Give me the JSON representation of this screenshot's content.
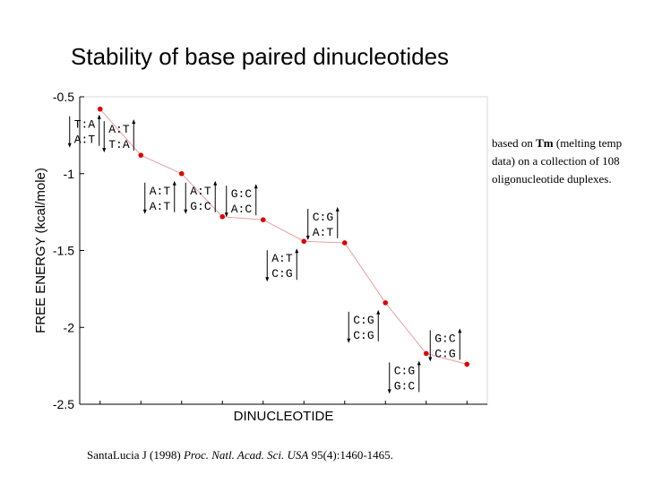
{
  "slide": {
    "title": "Stability of base paired dinucleotides",
    "note_part1": "based on ",
    "note_bold": "Tm",
    "note_part2": " (melting temp data) on a collection of 108 oligonucleotide duplexes.",
    "citation_plain1": "SantaLucia J (1998) ",
    "citation_italic": "Proc. Natl. Acad. Sci. USA",
    "citation_plain2": " 95(4):1460-1465."
  },
  "colors": {
    "line": "#e8a0a0",
    "marker": "#e00000",
    "axis": "#000000",
    "arrow": "#000000"
  },
  "chart_data": {
    "type": "line",
    "xlabel": "DINUCLEOTIDE",
    "ylabel": "FREE ENERGY (kcal/mole)",
    "ylim": [
      -2.5,
      -0.5
    ],
    "yticks": [
      -2.5,
      -2,
      -1.5,
      -1,
      -0.5
    ],
    "ytick_labels": [
      "-2.5",
      "-2",
      "-1.5",
      "-1",
      "-0.5"
    ],
    "grid": false,
    "x": [
      1,
      2,
      3,
      4,
      5,
      6,
      7,
      8,
      9,
      10
    ],
    "values": [
      -0.58,
      -0.88,
      -1.0,
      -1.28,
      -1.3,
      -1.44,
      -1.45,
      -1.84,
      -2.17,
      -2.24
    ],
    "labels": [
      {
        "top": "T:A",
        "bottom": "A:T"
      },
      {
        "top": "A:T",
        "bottom": "T:A"
      },
      {
        "top": "A:T",
        "bottom": "A:T"
      },
      {
        "top": "A:T",
        "bottom": "G:C"
      },
      {
        "top": "G:C",
        "bottom": "A:C"
      },
      {
        "top": "A:T",
        "bottom": "C:G"
      },
      {
        "top": "C:G",
        "bottom": "A:T"
      },
      {
        "top": "C:G",
        "bottom": "C:G"
      },
      {
        "top": "C:G",
        "bottom": "G:C"
      },
      {
        "top": "G:C",
        "bottom": "C:G"
      }
    ]
  }
}
